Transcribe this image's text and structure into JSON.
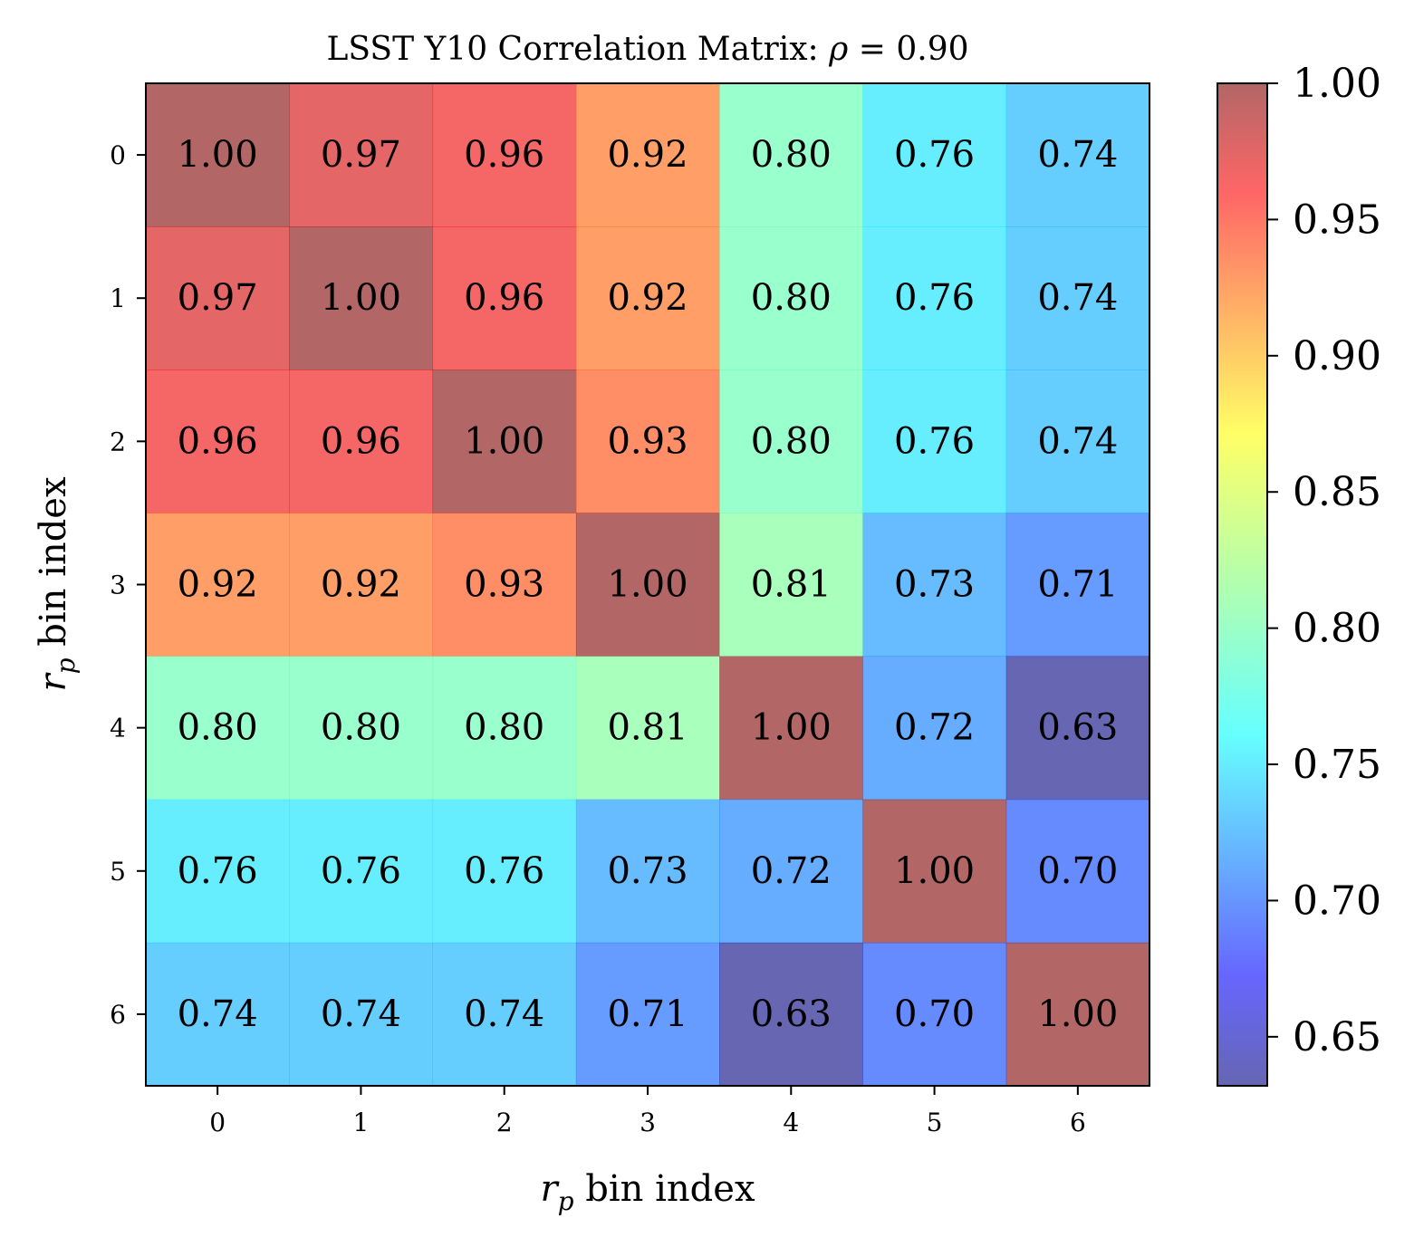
{
  "chart_data": {
    "type": "heatmap",
    "title_text": "LSST Y10 Correlation Matrix: ",
    "title_rho": "ρ",
    "title_value": " = 0.90",
    "xlabel_var": "r",
    "xlabel_sub": "p",
    "xlabel_rest": " bin index",
    "ylabel_var": "r",
    "ylabel_sub": "p",
    "ylabel_rest": " bin index",
    "x_ticks": [
      "0",
      "1",
      "2",
      "3",
      "4",
      "5",
      "6"
    ],
    "y_ticks": [
      "0",
      "1",
      "2",
      "3",
      "4",
      "5",
      "6"
    ],
    "matrix": [
      [
        1.0,
        0.97,
        0.96,
        0.92,
        0.8,
        0.76,
        0.74
      ],
      [
        0.97,
        1.0,
        0.96,
        0.92,
        0.8,
        0.76,
        0.74
      ],
      [
        0.96,
        0.96,
        1.0,
        0.93,
        0.8,
        0.76,
        0.74
      ],
      [
        0.92,
        0.92,
        0.93,
        1.0,
        0.81,
        0.73,
        0.71
      ],
      [
        0.8,
        0.8,
        0.8,
        0.81,
        1.0,
        0.72,
        0.63
      ],
      [
        0.76,
        0.76,
        0.76,
        0.73,
        0.72,
        1.0,
        0.7
      ],
      [
        0.74,
        0.74,
        0.74,
        0.71,
        0.63,
        0.7,
        1.0
      ]
    ],
    "colorbar_range": [
      0.632,
      1.0
    ],
    "colorbar_ticks": [
      "0.65",
      "0.70",
      "0.75",
      "0.80",
      "0.85",
      "0.90",
      "0.95",
      "1.00"
    ],
    "colormap": "jet",
    "opacity": 0.6
  }
}
